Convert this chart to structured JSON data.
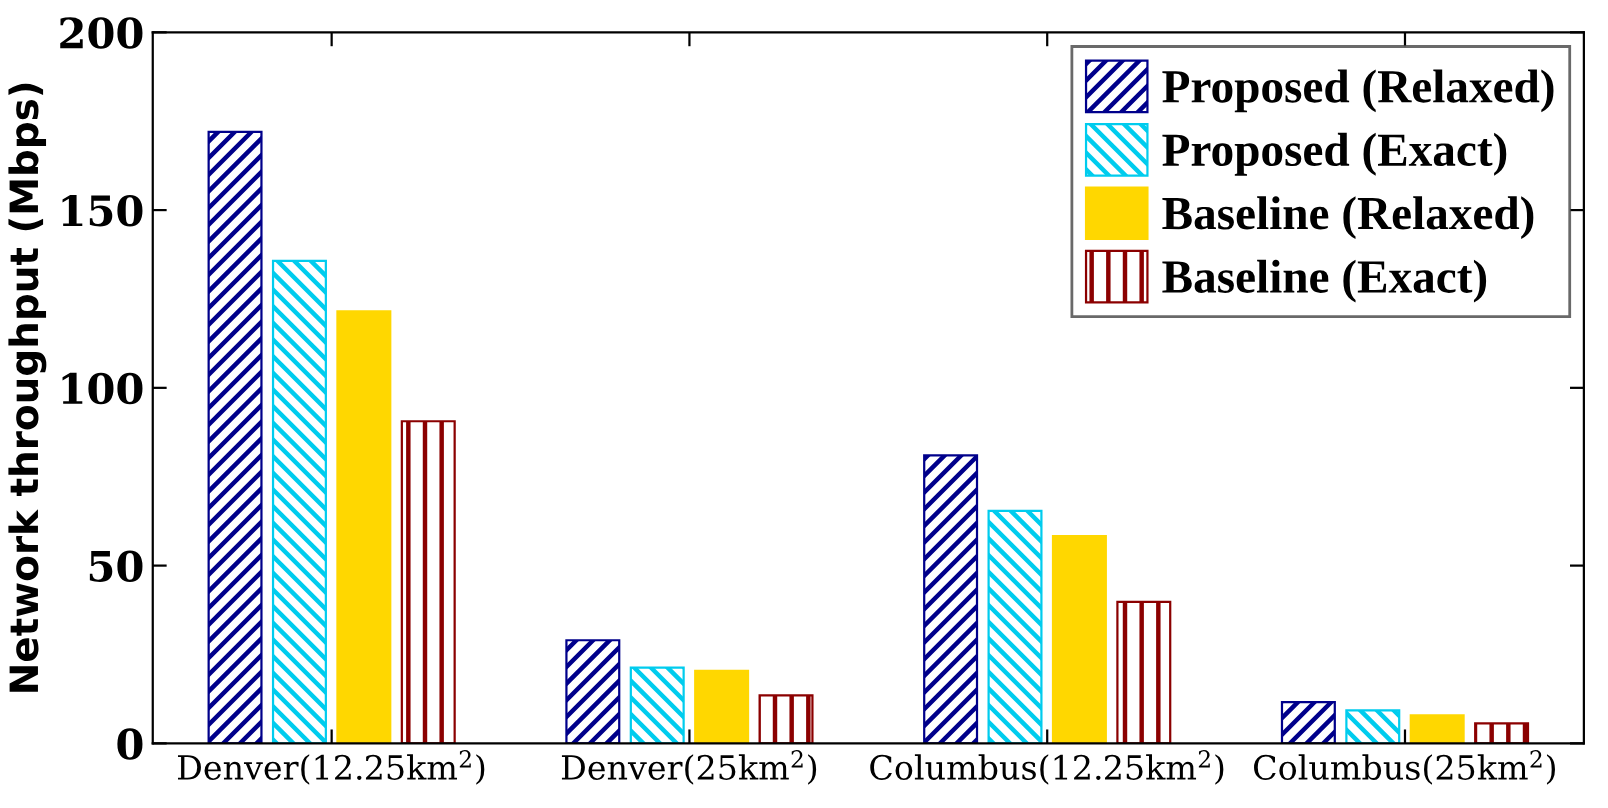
{
  "chart_data": {
    "type": "bar",
    "ylabel": "Network throughput (Mbps)",
    "categories": [
      "Denver(12.25km$^{2}$)",
      "Denver(25km$^{2}$)",
      "Columbus(12.25km$^{2}$)",
      "Columbus(25km$^{2}$)"
    ],
    "series": [
      {
        "name": "Proposed (Relaxed)",
        "color": "#00008b",
        "values": [
          172,
          29,
          81,
          11.6
        ]
      },
      {
        "name": "Proposed (Exact)",
        "color": "#00ccee",
        "values": [
          135.7,
          21.3,
          65.4,
          9.3
        ]
      },
      {
        "name": "Baseline (Relaxed)",
        "color": "#ffd700",
        "values": [
          121.5,
          20.4,
          58.3,
          7.9
        ]
      },
      {
        "name": "Baseline (Exact)",
        "color": "#8b0000",
        "values": [
          90.6,
          13.5,
          39.8,
          5.6
        ]
      }
    ],
    "ylim": [
      0,
      200
    ],
    "yticks": [
      0,
      50,
      100,
      150,
      200
    ],
    "grid": false,
    "legend": "top right"
  }
}
